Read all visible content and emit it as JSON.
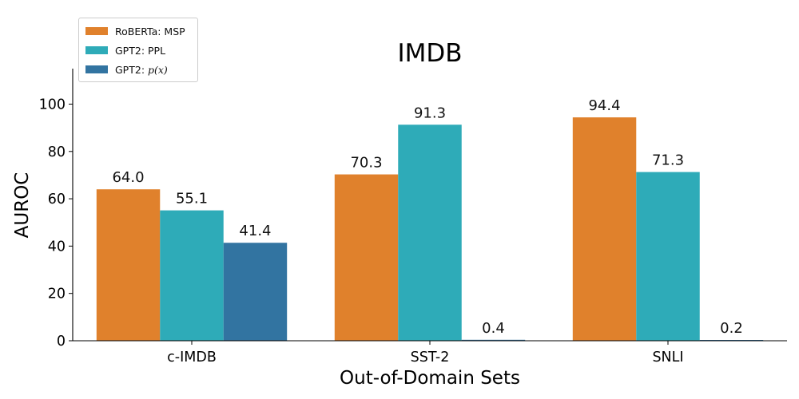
{
  "chart_data": {
    "type": "bar",
    "title": "IMDB",
    "xlabel": "Out-of-Domain Sets",
    "ylabel": "AUROC",
    "categories": [
      "c-IMDB",
      "SST-2",
      "SNLI"
    ],
    "series": [
      {
        "name": "RoBERTa: MSP",
        "values": [
          64.0,
          70.3,
          94.4
        ],
        "labels": [
          "64.0",
          "70.3",
          "94.4"
        ],
        "color": "#e0812c"
      },
      {
        "name": "GPT2: PPL",
        "values": [
          55.1,
          91.3,
          71.3
        ],
        "labels": [
          "55.1",
          "91.3",
          "71.3"
        ],
        "color": "#2eabb8"
      },
      {
        "name_prefix": "GPT2: ",
        "name_math": "p(x)",
        "values": [
          41.4,
          0.4,
          0.2
        ],
        "labels": [
          "41.4",
          "0.4",
          "0.2"
        ],
        "color": "#3274a1"
      }
    ],
    "ylim": [
      0,
      115
    ],
    "yticks": [
      0,
      20,
      40,
      60,
      80,
      100
    ],
    "grid": false,
    "legend_position": "top-left"
  }
}
